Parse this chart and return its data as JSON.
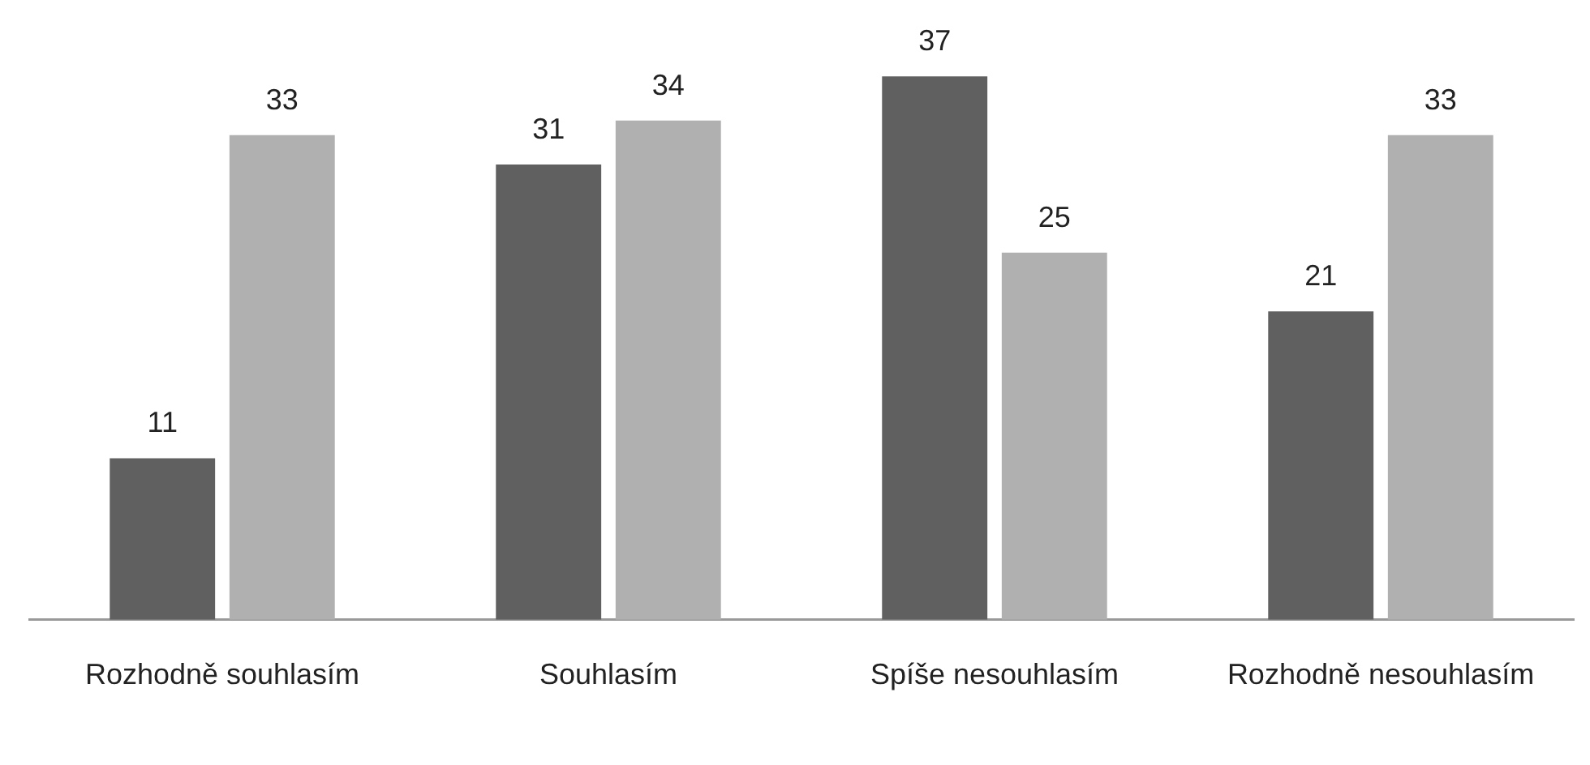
{
  "chart_data": {
    "type": "bar",
    "categories": [
      "Rozhodně souhlasím",
      "Souhlasím",
      "Spíše nesouhlasím",
      "Rozhodně nesouhlasím"
    ],
    "series": [
      {
        "color": "#606060",
        "values": [
          11,
          31,
          37,
          21
        ]
      },
      {
        "color": "#b0b0b0",
        "values": [
          33,
          34,
          25,
          33
        ]
      }
    ],
    "data_labels": true,
    "grid": false,
    "legend": false
  }
}
